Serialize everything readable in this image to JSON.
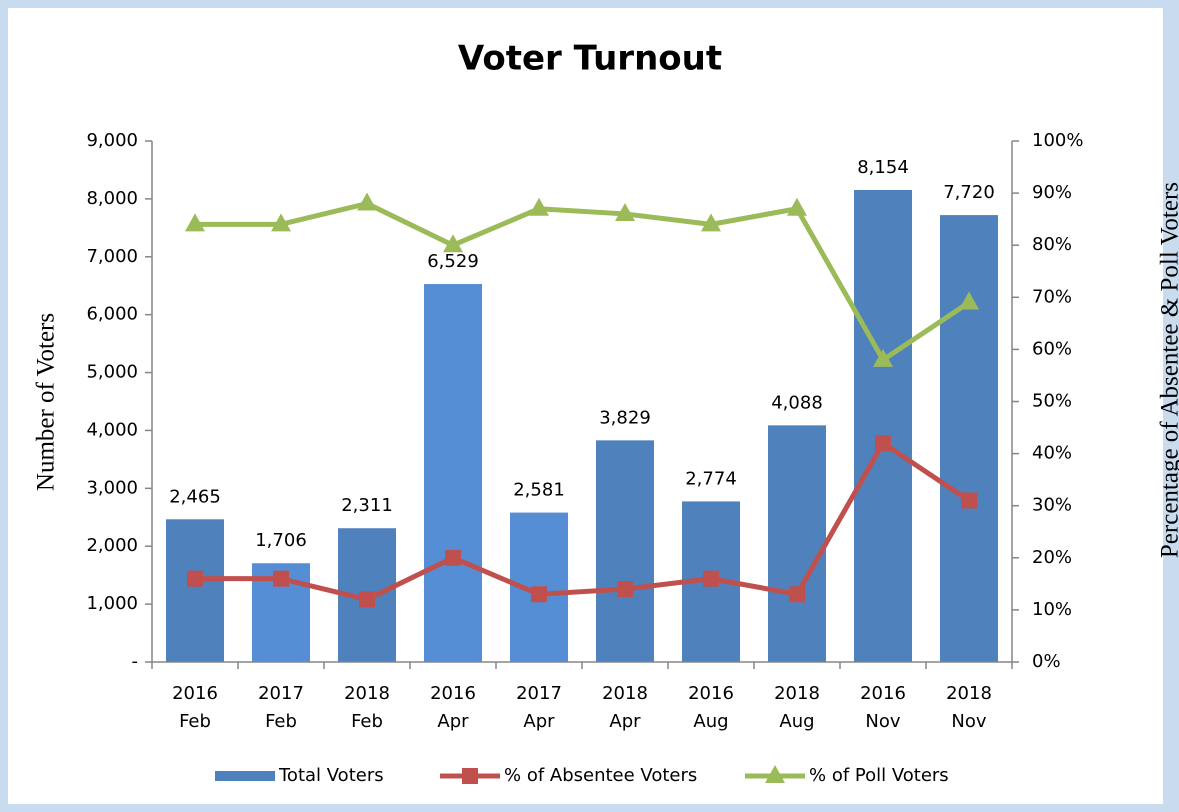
{
  "chart_data": {
    "type": "bar-line",
    "title": "Voter Turnout",
    "y_label": "Number of Voters",
    "y2_label": "Percentage of Absentee & Poll Voters",
    "categories": [
      [
        "2016",
        "Feb"
      ],
      [
        "2017",
        "Feb"
      ],
      [
        "2018",
        "Feb"
      ],
      [
        "2016",
        "Apr"
      ],
      [
        "2017",
        "Apr"
      ],
      [
        "2018",
        "Apr"
      ],
      [
        "2016",
        "Aug"
      ],
      [
        "2018",
        "Aug"
      ],
      [
        "2016",
        "Nov"
      ],
      [
        "2018",
        "Nov"
      ]
    ],
    "series": [
      {
        "name": "Total Voters",
        "type": "bar",
        "color": "#4f81bd",
        "colors": [
          "#4f81bd",
          "#558ed5",
          "#4f81bd",
          "#558ed5",
          "#558ed5",
          "#4f81bd",
          "#4f81bd",
          "#4f81bd",
          "#4f81bd",
          "#4f81bd"
        ],
        "values": [
          2465,
          1706,
          2311,
          6529,
          2581,
          3829,
          2774,
          4088,
          8154,
          7720
        ],
        "value_labels": [
          "2,465",
          "1,706",
          "2,311",
          "6,529",
          "2,581",
          "3,829",
          "2,774",
          "4,088",
          "8,154",
          "7,720"
        ]
      },
      {
        "name": "% of Absentee Voters",
        "type": "line",
        "axis": "y2",
        "color": "#c0504d",
        "marker": "square",
        "values": [
          16,
          16,
          12,
          20,
          13,
          14,
          16,
          13,
          42,
          31
        ]
      },
      {
        "name": "% of Poll Voters",
        "type": "line",
        "axis": "y2",
        "color": "#9bbb59",
        "marker": "triangle",
        "values": [
          84,
          84,
          88,
          80,
          87,
          86,
          84,
          87,
          58,
          69
        ]
      }
    ],
    "ylim": [
      0,
      9000
    ],
    "yticks": [
      {
        "value": 0,
        "label": "-"
      },
      {
        "value": 1000,
        "label": "1,000"
      },
      {
        "value": 2000,
        "label": "2,000"
      },
      {
        "value": 3000,
        "label": "3,000"
      },
      {
        "value": 4000,
        "label": "4,000"
      },
      {
        "value": 5000,
        "label": "5,000"
      },
      {
        "value": 6000,
        "label": "6,000"
      },
      {
        "value": 7000,
        "label": "7,000"
      },
      {
        "value": 8000,
        "label": "8,000"
      },
      {
        "value": 9000,
        "label": "9,000"
      }
    ],
    "y2lim": [
      0,
      100
    ],
    "y2ticks": [
      {
        "value": 0,
        "label": "0%"
      },
      {
        "value": 10,
        "label": "10%"
      },
      {
        "value": 20,
        "label": "20%"
      },
      {
        "value": 30,
        "label": "30%"
      },
      {
        "value": 40,
        "label": "40%"
      },
      {
        "value": 50,
        "label": "50%"
      },
      {
        "value": 60,
        "label": "60%"
      },
      {
        "value": 70,
        "label": "70%"
      },
      {
        "value": 80,
        "label": "80%"
      },
      {
        "value": 90,
        "label": "90%"
      },
      {
        "value": 100,
        "label": "100%"
      }
    ],
    "grid": false,
    "legend": "bottom"
  }
}
